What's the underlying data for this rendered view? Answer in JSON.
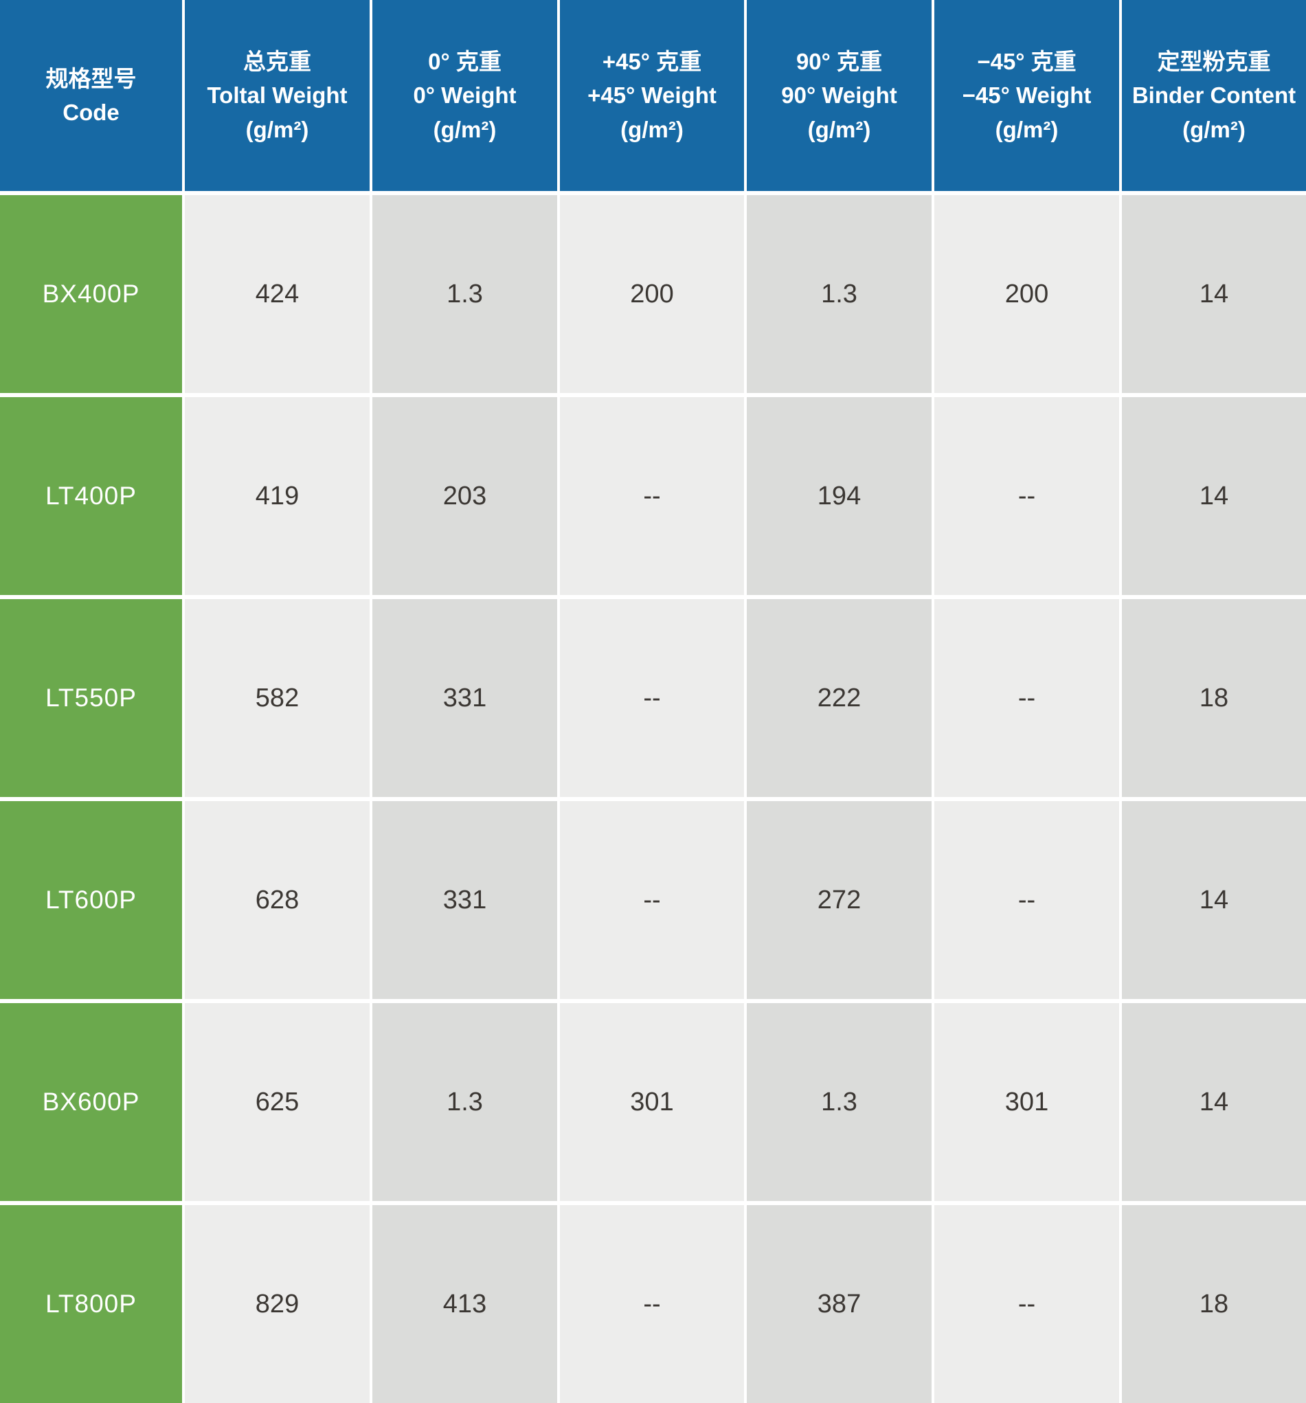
{
  "table": {
    "title": "fabric-weight-specification-table",
    "columns": [
      {
        "zh": "规格型号",
        "en": "Code",
        "unit": ""
      },
      {
        "zh": "总克重",
        "en": "Toltal Weight",
        "unit": "(g/m²)"
      },
      {
        "zh": "0° 克重",
        "en": "0° Weight",
        "unit": "(g/m²)"
      },
      {
        "zh": "+45° 克重",
        "en": "+45° Weight",
        "unit": "(g/m²)"
      },
      {
        "zh": "90° 克重",
        "en": "90° Weight",
        "unit": "(g/m²)"
      },
      {
        "zh": "−45° 克重",
        "en": "−45° Weight",
        "unit": "(g/m²)"
      },
      {
        "zh": "定型粉克重",
        "en": "Binder Content",
        "unit": "(g/m²)"
      }
    ],
    "rows": [
      {
        "code": "BX400P",
        "values": [
          "424",
          "1.3",
          "200",
          "1.3",
          "200",
          "14"
        ]
      },
      {
        "code": "LT400P",
        "values": [
          "419",
          "203",
          "--",
          "194",
          "--",
          "14"
        ]
      },
      {
        "code": "LT550P",
        "values": [
          "582",
          "331",
          "--",
          "222",
          "--",
          "18"
        ]
      },
      {
        "code": "LT600P",
        "values": [
          "628",
          "331",
          "--",
          "272",
          "--",
          "14"
        ]
      },
      {
        "code": "BX600P",
        "values": [
          "625",
          "1.3",
          "301",
          "1.3",
          "301",
          "14"
        ]
      },
      {
        "code": "LT800P",
        "values": [
          "829",
          "413",
          "--",
          "387",
          "--",
          "18"
        ]
      }
    ],
    "colors": {
      "header_bg": "#1769A4",
      "code_bg": "#6BA94D",
      "cell_light_bg": "#EDEDEC",
      "cell_dark_bg": "#DBDCDA",
      "header_text": "#FFFFFF",
      "cell_text": "#3B3733",
      "grid_lines": "#FFFFFF"
    }
  }
}
